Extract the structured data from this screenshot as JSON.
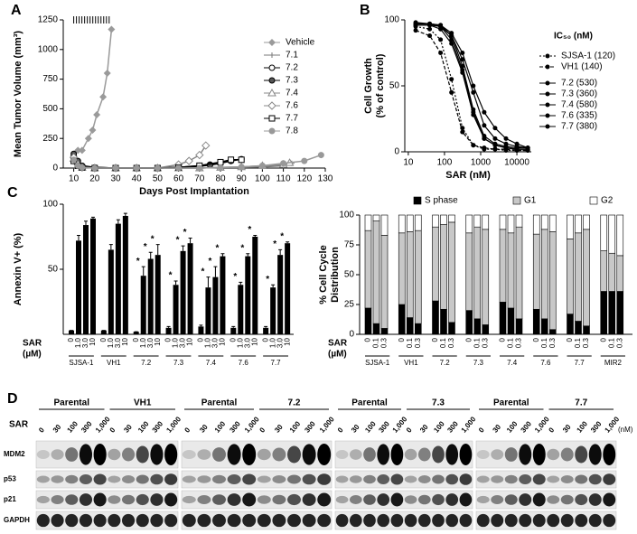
{
  "panel_labels": [
    "A",
    "B",
    "C",
    "D"
  ],
  "chart_data": [
    {
      "type": "line",
      "xlabel": "Days Post Implantation",
      "ylabel": "Mean Tumor Volume (mm³)",
      "xlim": [
        5,
        130
      ],
      "xticks": [
        10,
        20,
        30,
        40,
        50,
        60,
        70,
        80,
        90,
        100,
        110,
        120,
        130
      ],
      "ylim": [
        0,
        1250
      ],
      "yticks": [
        0,
        250,
        500,
        750,
        1000,
        1250
      ],
      "dosing_days": [
        10,
        11.3,
        12.6,
        13.9,
        15.2,
        16.5,
        17.8,
        19.1,
        20.4,
        21.7,
        23,
        24.3,
        25.6,
        26.9
      ],
      "series": [
        {
          "name": "Vehicle",
          "color": "#9a9a9a",
          "marker": "diamond",
          "x": [
            10,
            12,
            14,
            17,
            19,
            21,
            24,
            26,
            28
          ],
          "values": [
            100,
            150,
            150,
            250,
            320,
            450,
            600,
            800,
            1170
          ]
        },
        {
          "name": "7.1",
          "color": "#777777",
          "marker": "plus",
          "x": [
            10,
            12,
            14,
            20,
            30,
            40,
            50,
            60,
            70,
            80,
            90,
            100,
            110,
            114
          ],
          "values": [
            80,
            30,
            10,
            5,
            0,
            0,
            0,
            0,
            0,
            5,
            5,
            10,
            20,
            40
          ]
        },
        {
          "name": "7.2",
          "color": "#000000",
          "marker": "circle-open",
          "x": [
            10,
            12,
            14,
            20,
            30,
            40,
            50,
            60,
            70,
            75,
            80,
            85,
            90
          ],
          "values": [
            100,
            40,
            15,
            5,
            0,
            0,
            0,
            5,
            20,
            30,
            50,
            60,
            75
          ]
        },
        {
          "name": "7.3",
          "color": "#000000",
          "marker": "circle-half",
          "x": [
            10,
            12,
            14,
            20,
            30,
            40,
            50,
            60,
            70,
            75,
            80,
            85
          ],
          "values": [
            120,
            60,
            20,
            5,
            0,
            0,
            0,
            5,
            15,
            25,
            40,
            60
          ]
        },
        {
          "name": "7.4",
          "color": "#888888",
          "marker": "triangle",
          "x": [
            10,
            12,
            14,
            20,
            30,
            40,
            50,
            60,
            70,
            80,
            90,
            100,
            110,
            113
          ],
          "values": [
            80,
            20,
            5,
            0,
            0,
            0,
            0,
            0,
            0,
            5,
            10,
            20,
            30,
            45
          ]
        },
        {
          "name": "7.6",
          "color": "#888888",
          "marker": "diamond-open",
          "x": [
            10,
            12,
            14,
            20,
            30,
            40,
            50,
            60,
            65,
            70,
            73
          ],
          "values": [
            90,
            30,
            5,
            0,
            0,
            0,
            0,
            30,
            60,
            110,
            190
          ]
        },
        {
          "name": "7.7",
          "color": "#000000",
          "marker": "square-open",
          "x": [
            10,
            12,
            14,
            20,
            30,
            40,
            50,
            60,
            70,
            80,
            85,
            90
          ],
          "values": [
            60,
            20,
            5,
            0,
            0,
            0,
            0,
            5,
            20,
            50,
            70,
            70
          ]
        },
        {
          "name": "7.8",
          "color": "#999999",
          "marker": "circle-gray",
          "x": [
            10,
            12,
            14,
            20,
            30,
            40,
            50,
            60,
            70,
            80,
            90,
            100,
            110,
            120,
            128
          ],
          "values": [
            70,
            20,
            5,
            0,
            0,
            0,
            0,
            0,
            0,
            5,
            10,
            20,
            40,
            60,
            110
          ]
        }
      ]
    },
    {
      "type": "line",
      "log_x": true,
      "xlabel": "SAR (nM)",
      "ylabel": [
        "Cell Growth",
        "(% of control)"
      ],
      "legend_title": "IC₅₀ (nM)",
      "xlim": [
        8,
        25000
      ],
      "xticks": [
        10,
        100,
        1000,
        10000
      ],
      "ylim": [
        0,
        100
      ],
      "yticks": [
        0,
        50,
        100
      ],
      "x": [
        16,
        39,
        78,
        156,
        313,
        625,
        1250,
        2500,
        5000,
        10000,
        20000
      ],
      "series": [
        {
          "name": "SJSA-1 (120)",
          "color": "#000000",
          "marker": "dot",
          "dash": "2,2",
          "values": [
            95,
            93,
            85,
            55,
            18,
            5,
            2,
            2,
            1,
            1,
            1
          ]
        },
        {
          "name": "VH1 (140)",
          "color": "#000000",
          "marker": "dot",
          "dash": "4,2",
          "values": [
            92,
            88,
            75,
            45,
            15,
            5,
            3,
            2,
            2,
            1,
            1
          ]
        },
        {
          "name": "7.2 (530)",
          "color": "#000000",
          "marker": "dot",
          "values": [
            96,
            96,
            95,
            88,
            70,
            45,
            20,
            10,
            6,
            4,
            3
          ]
        },
        {
          "name": "7.3 (360)",
          "color": "#000000",
          "marker": "dot",
          "values": [
            97,
            97,
            95,
            85,
            62,
            30,
            10,
            5,
            3,
            2,
            2
          ]
        },
        {
          "name": "7.4 (580)",
          "color": "#000000",
          "marker": "dot",
          "values": [
            98,
            97,
            96,
            90,
            75,
            50,
            30,
            18,
            10,
            6,
            3
          ]
        },
        {
          "name": "7.6 (335)",
          "color": "#000000",
          "marker": "dot",
          "values": [
            96,
            96,
            93,
            82,
            60,
            28,
            10,
            5,
            3,
            2,
            2
          ]
        },
        {
          "name": "7.7 (380)",
          "color": "#000000",
          "marker": "dot",
          "values": [
            97,
            97,
            96,
            88,
            65,
            32,
            12,
            6,
            4,
            3,
            3
          ]
        }
      ]
    },
    {
      "type": "bar",
      "ylabel": "Annexin V+ (%)",
      "dose_label": [
        "SAR",
        "(µM)"
      ],
      "color": "#000000",
      "ylim": [
        0,
        100
      ],
      "yticks": [
        50,
        100
      ],
      "categories": [
        "SJSA-1",
        "VH1",
        "7.2",
        "7.3",
        "7.4",
        "7.6",
        "7.7"
      ],
      "doses": [
        "0",
        "1.0",
        "3.0",
        "10"
      ],
      "values": [
        [
          3,
          72,
          84,
          89
        ],
        [
          3,
          65,
          85,
          91
        ],
        [
          2,
          45,
          58,
          61
        ],
        [
          5,
          38,
          64,
          70
        ],
        [
          6,
          36,
          44,
          60
        ],
        [
          5,
          38,
          60,
          75
        ],
        [
          5,
          36,
          61,
          70
        ]
      ],
      "errors": [
        [
          0,
          4,
          3,
          1
        ],
        [
          0,
          4,
          3,
          2
        ],
        [
          0,
          7,
          5,
          8
        ],
        [
          1,
          3,
          4,
          4
        ],
        [
          1,
          8,
          8,
          2
        ],
        [
          1,
          2,
          2,
          1
        ],
        [
          1,
          2,
          4,
          1
        ]
      ],
      "stars": [
        [
          null,
          null,
          null,
          null
        ],
        [
          null,
          null,
          null,
          null
        ],
        [
          null,
          "*",
          "*",
          "*"
        ],
        [
          null,
          "*",
          "*",
          "*"
        ],
        [
          null,
          "*",
          "*",
          "*"
        ],
        [
          null,
          "*",
          "*",
          "*"
        ],
        [
          null,
          "*",
          "*",
          "*"
        ]
      ]
    },
    {
      "type": "stacked_bar",
      "ylabel": [
        "% Cell Cycle",
        "Distribution"
      ],
      "dose_label": [
        "SAR",
        "(µM)"
      ],
      "ylim": [
        0,
        100
      ],
      "yticks": [
        0,
        25,
        50,
        75,
        100
      ],
      "categories": [
        "SJSA-1",
        "VH1",
        "7.2",
        "7.3",
        "7.4",
        "7.6",
        "7.7",
        "MIR2"
      ],
      "doses": [
        "0",
        "0.1",
        "0.3"
      ],
      "series": [
        {
          "name": "S phase",
          "color": "#000000",
          "values": [
            [
              22,
              9,
              5
            ],
            [
              25,
              14,
              9
            ],
            [
              28,
              21,
              10
            ],
            [
              20,
              13,
              8
            ],
            [
              27,
              22,
              13
            ],
            [
              21,
              13,
              4
            ],
            [
              17,
              11,
              7
            ],
            [
              36,
              36,
              36
            ]
          ]
        },
        {
          "name": "G1",
          "color": "#c8c8c8",
          "values": [
            [
              65,
              86,
              78
            ],
            [
              60,
              72,
              78
            ],
            [
              62,
              71,
              84
            ],
            [
              65,
              77,
              80
            ],
            [
              61,
              63,
              77
            ],
            [
              63,
              75,
              82
            ],
            [
              63,
              74,
              81
            ],
            [
              34,
              32,
              30
            ]
          ]
        },
        {
          "name": "G2",
          "color": "#ffffff",
          "values": [
            [
              13,
              5,
              17
            ],
            [
              15,
              14,
              13
            ],
            [
              10,
              8,
              6
            ],
            [
              15,
              10,
              12
            ],
            [
              12,
              15,
              10
            ],
            [
              16,
              12,
              14
            ],
            [
              20,
              15,
              12
            ],
            [
              30,
              32,
              34
            ]
          ]
        }
      ]
    }
  ],
  "blot": {
    "dose_label": "SAR",
    "unit": "(nM)",
    "doses": [
      "0",
      "30",
      "100",
      "300",
      "1,000"
    ],
    "groups": [
      {
        "parental": "Parental",
        "clone": "VH1"
      },
      {
        "parental": "Parental",
        "clone": "7.2"
      },
      {
        "parental": "Parental",
        "clone": "7.3"
      },
      {
        "parental": "Parental",
        "clone": "7.7"
      }
    ],
    "proteins": [
      "MDM2",
      "p53",
      "p21",
      "GAPDH"
    ]
  }
}
